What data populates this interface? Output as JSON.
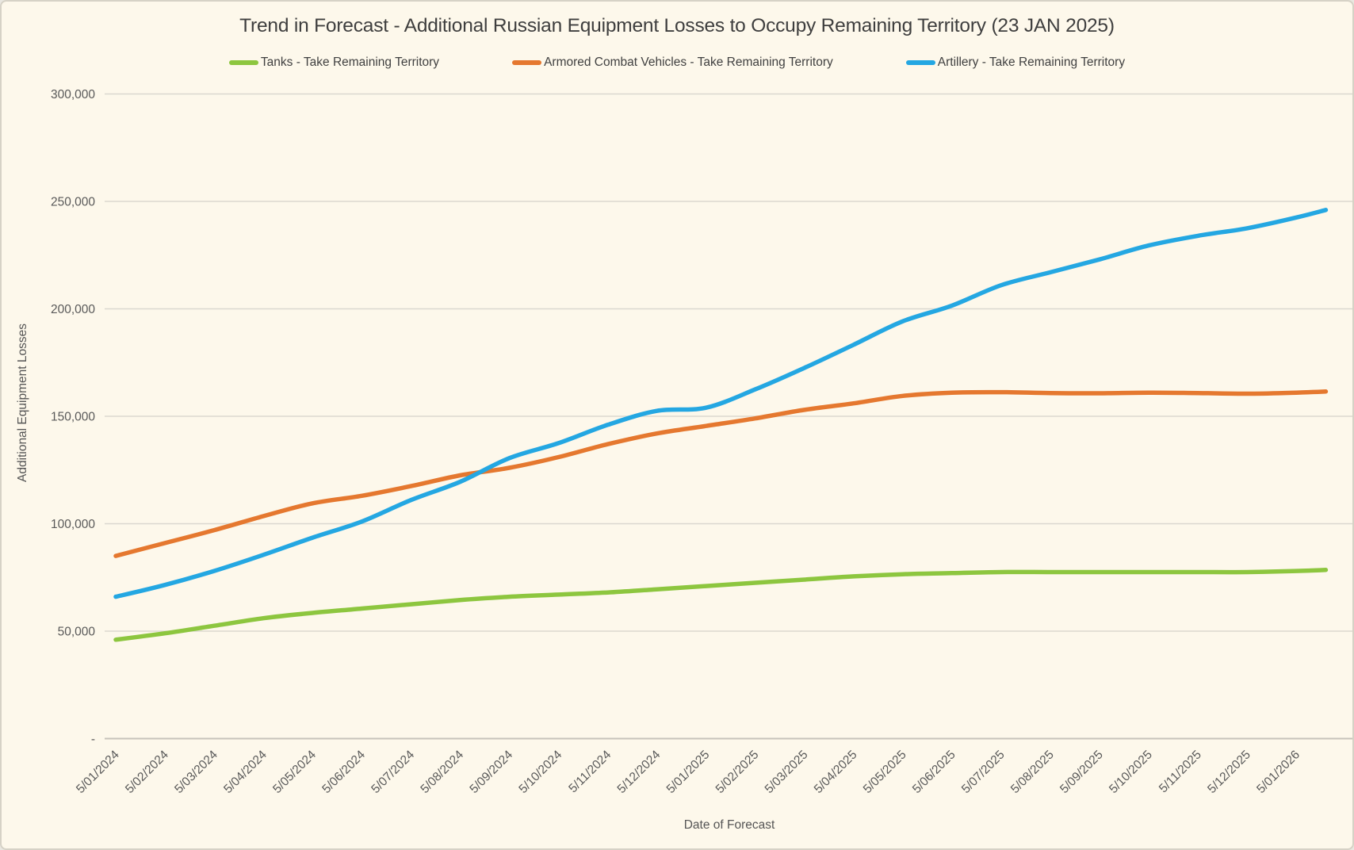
{
  "title": "Trend in Forecast - Additional Russian Equipment Losses to Occupy Remaining Territory (23 JAN 2025)",
  "x_axis_title": "Date of Forecast",
  "y_axis_title": "Additional Equipment Losses",
  "colors": {
    "background": "#FDF8EB",
    "gridline": "#DBD8D0",
    "axis_line": "#C6C3BA",
    "title_text": "#3E3E3E",
    "tick_text": "#595959",
    "tanks": "#8DC63F",
    "acv": "#E5782F",
    "artillery": "#24A7E2"
  },
  "chart_data": {
    "type": "line",
    "title": "Trend in Forecast - Additional Russian Equipment Losses to Occupy Remaining Territory (23 JAN 2025)",
    "xlabel": "Date of Forecast",
    "ylabel": "Additional Equipment Losses",
    "ylim": [
      0,
      300000
    ],
    "y_tick_step": 50000,
    "y_tick_labels": [
      "-",
      "50,000",
      "100,000",
      "150,000",
      "200,000",
      "250,000",
      "300,000"
    ],
    "grid": "horizontal-only",
    "legend_position": "top-center",
    "x_tick_rotation_deg": -45,
    "categories": [
      "5/01/2024",
      "5/02/2024",
      "5/03/2024",
      "5/04/2024",
      "5/05/2024",
      "5/06/2024",
      "5/07/2024",
      "5/08/2024",
      "5/09/2024",
      "5/10/2024",
      "5/11/2024",
      "5/12/2024",
      "5/01/2025",
      "5/02/2025",
      "5/03/2025",
      "5/04/2025",
      "5/05/2025",
      "5/06/2025",
      "5/07/2025",
      "5/08/2025",
      "5/09/2025",
      "5/10/2025",
      "5/11/2025",
      "5/12/2025",
      "5/01/2026"
    ],
    "x_frac": [
      0,
      1,
      2,
      3,
      4,
      5,
      6,
      7,
      8,
      9,
      10,
      11,
      12,
      13,
      14,
      15,
      16,
      17,
      18,
      19,
      20,
      21,
      22,
      23,
      24,
      24.6
    ],
    "series": [
      {
        "name": "Tanks - Take Remaining Territory",
        "color_key": "tanks",
        "values": [
          46000,
          49000,
          52500,
          56000,
          58500,
          60500,
          62500,
          64500,
          66000,
          67000,
          68000,
          69500,
          71000,
          72500,
          74000,
          75500,
          76500,
          77000,
          77500,
          77500,
          77500,
          77500,
          77500,
          77500,
          78000,
          78500
        ]
      },
      {
        "name": "Armored Combat Vehicles - Take Remaining Territory",
        "color_key": "acv",
        "values": [
          85000,
          91000,
          97000,
          103500,
          109500,
          113000,
          117500,
          122500,
          126000,
          131000,
          137000,
          142000,
          145500,
          149000,
          153000,
          156000,
          159500,
          161000,
          161200,
          160800,
          160700,
          161000,
          160800,
          160500,
          161000,
          161500
        ]
      },
      {
        "name": "Artillery - Take Remaining Territory",
        "color_key": "artillery",
        "values": [
          66000,
          71500,
          78000,
          85500,
          93500,
          101000,
          111000,
          119500,
          130500,
          137500,
          146000,
          152500,
          154000,
          162500,
          172500,
          183300,
          194200,
          201500,
          211000,
          217000,
          223000,
          229500,
          234000,
          237500,
          242500,
          246000
        ]
      }
    ]
  }
}
